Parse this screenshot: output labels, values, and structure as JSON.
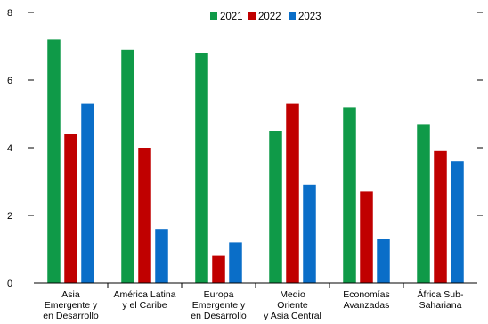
{
  "chart_data": {
    "type": "bar",
    "categories": [
      [
        "Asia",
        "Emergente y",
        "en Desarrollo"
      ],
      [
        "América Latina",
        "y el Caribe"
      ],
      [
        "Europa",
        "Emergente y",
        "en Desarrollo"
      ],
      [
        "Medio",
        "Oriente",
        "y Asia Central"
      ],
      [
        "Economías",
        "Avanzadas"
      ],
      [
        "África Sub-",
        "Sahariana"
      ]
    ],
    "series": [
      {
        "name": "2021",
        "color": "#0f9a48",
        "values": [
          7.2,
          6.9,
          6.8,
          4.5,
          5.2,
          4.7
        ]
      },
      {
        "name": "2022",
        "color": "#c00000",
        "values": [
          4.4,
          4.0,
          0.8,
          5.3,
          2.7,
          3.9
        ]
      },
      {
        "name": "2023",
        "color": "#0a6ec8",
        "values": [
          5.3,
          1.6,
          1.2,
          2.9,
          1.3,
          3.6
        ]
      }
    ],
    "ylim": [
      0,
      8
    ],
    "yticks": [
      "0",
      "2",
      "4",
      "6",
      "8"
    ],
    "ytick_values": [
      0,
      2,
      4,
      6,
      8
    ],
    "legend_position": "top-center",
    "grid": false
  }
}
